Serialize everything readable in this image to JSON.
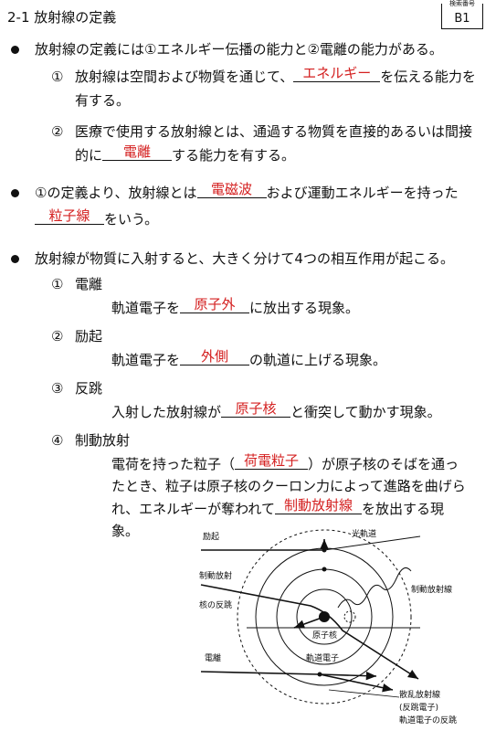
{
  "header": {
    "title": "2-1 放射線の定義",
    "badge_label": "検索番号",
    "badge_code": "B1"
  },
  "bullets": [
    {
      "parts": [
        {
          "t": "放射線の定義には①エネルギー伝播の能力と②電離の能力がある。"
        }
      ],
      "items": [
        {
          "marker": "①",
          "parts": [
            {
              "t": "放射線は空間および物質を通じて、"
            },
            {
              "a": "エネルギー"
            },
            {
              "t": "を伝える能力を有する。"
            }
          ]
        },
        {
          "marker": "②",
          "parts": [
            {
              "t": "医療で使用する放射線とは、通過する物質を直接的あるいは間接的に"
            },
            {
              "a": "電離"
            },
            {
              "t": "する能力を有する。"
            }
          ]
        }
      ]
    },
    {
      "parts": [
        {
          "t": "①の定義より、放射線とは"
        },
        {
          "a": "電磁波"
        },
        {
          "t": "および運動エネルギーを持った"
        },
        {
          "a": "粒子線"
        },
        {
          "t": "をいう。"
        }
      ],
      "items": []
    },
    {
      "parts": [
        {
          "t": "放射線が物質に入射すると、大きく分けて4つの相互作用が起こる。"
        }
      ],
      "subitems": [
        {
          "marker": "①",
          "name": "電離",
          "parts": [
            {
              "t": "軌道電子を"
            },
            {
              "a": "原子外"
            },
            {
              "t": "に放出する現象。"
            }
          ]
        },
        {
          "marker": "②",
          "name": "励起",
          "parts": [
            {
              "t": "軌道電子を"
            },
            {
              "a": "外側"
            },
            {
              "t": "の軌道に上げる現象。"
            }
          ]
        },
        {
          "marker": "③",
          "name": "反跳",
          "parts": [
            {
              "t": "入射した放射線が"
            },
            {
              "a": "原子核"
            },
            {
              "t": "と衝突して動かす現象。"
            }
          ]
        },
        {
          "marker": "④",
          "name": "制動放射",
          "parts": [
            {
              "t": "電荷を持った粒子（"
            },
            {
              "a": "荷電粒子"
            },
            {
              "t": "）が原子核のそばを通ったとき、粒子は原子核のクーロン力によって進路を曲げられ、エネルギーが奪われて"
            },
            {
              "a": "制動放射線"
            },
            {
              "t": "を放出する現象。"
            }
          ]
        }
      ]
    }
  ],
  "diagram": {
    "labels": [
      "励起",
      "光軌道",
      "制動放射",
      "制動放射線",
      "核の反跳",
      "原子核",
      "電離",
      "軌道電子",
      "散乱放射線",
      "(反跳電子)",
      "軌道電子の反跳"
    ]
  }
}
